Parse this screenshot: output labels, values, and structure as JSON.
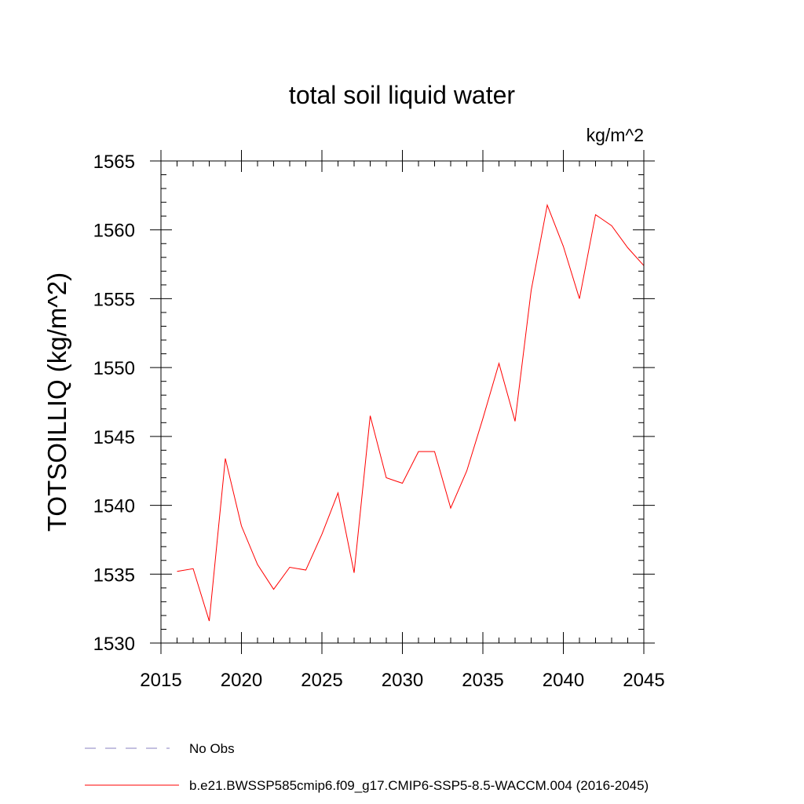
{
  "chart_data": {
    "type": "line",
    "title": "total soil liquid water",
    "units_label": "kg/m^2",
    "ylabel": "TOTSOILLIQ  (kg/m^2)",
    "xlabel": "",
    "xlim": [
      2015,
      2045
    ],
    "ylim": [
      1530,
      1565
    ],
    "x_ticks": [
      2015,
      2020,
      2025,
      2030,
      2035,
      2040,
      2045
    ],
    "y_ticks": [
      1530,
      1535,
      1540,
      1545,
      1550,
      1555,
      1560,
      1565
    ],
    "x_minor_step": 1,
    "y_minor_step": 1,
    "grid": false,
    "legend_position": "bottom-left",
    "series": [
      {
        "name": "b.e21.BWSSP585cmip6.f09_g17.CMIP6-SSP5-8.5-WACCM.004 (2016-2045)",
        "color": "#ff0000",
        "dash": "solid",
        "x": [
          2016,
          2017,
          2018,
          2019,
          2020,
          2021,
          2022,
          2023,
          2024,
          2025,
          2026,
          2027,
          2028,
          2029,
          2030,
          2031,
          2032,
          2033,
          2034,
          2035,
          2036,
          2037,
          2038,
          2039,
          2040,
          2041,
          2042,
          2043,
          2044,
          2045
        ],
        "y": [
          1535.2,
          1535.4,
          1531.6,
          1543.4,
          1538.5,
          1535.7,
          1533.9,
          1535.5,
          1535.3,
          1537.9,
          1540.9,
          1535.1,
          1546.5,
          1542.0,
          1541.6,
          1543.9,
          1543.9,
          1539.8,
          1542.5,
          1546.3,
          1550.3,
          1546.1,
          1555.6,
          1561.8,
          1558.8,
          1555.0,
          1561.1,
          1560.3,
          1558.7,
          1557.4
        ]
      }
    ],
    "legend": [
      {
        "label": "No Obs",
        "color": "#8a82c0",
        "dash": "dashed"
      },
      {
        "label": "b.e21.BWSSP585cmip6.f09_g17.CMIP6-SSP5-8.5-WACCM.004 (2016-2045)",
        "color": "#ff0000",
        "dash": "solid"
      }
    ]
  }
}
